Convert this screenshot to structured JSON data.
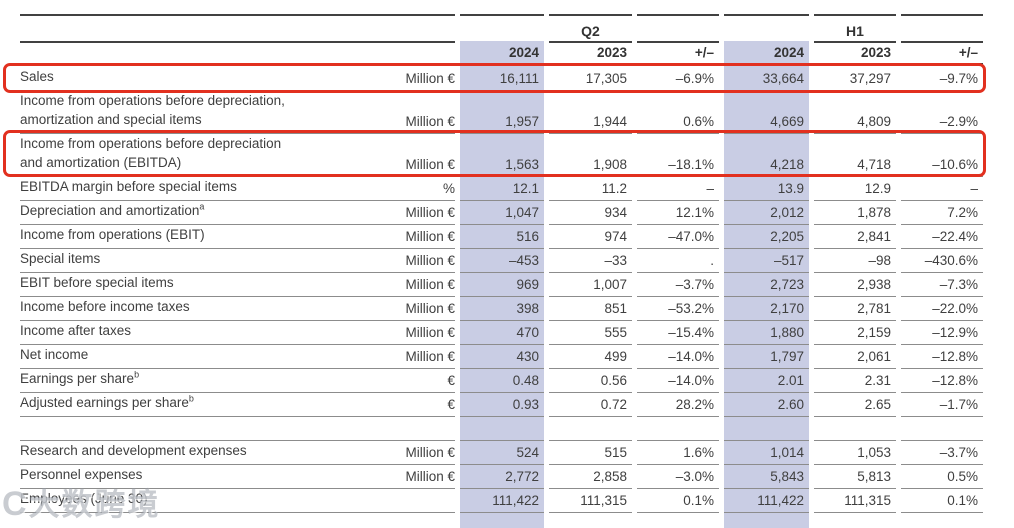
{
  "colors": {
    "column_shade": "#c9cde4",
    "highlight_box": "#e2301f",
    "rule_dark": "#414141",
    "rule_light": "#8c8c8c",
    "text": "#3f3f3f"
  },
  "watermark": {
    "mark": "C",
    "text": "大数跨境"
  },
  "table": {
    "col_groups": [
      {
        "label": "Q2",
        "years": [
          "2024",
          "2023",
          "+/–"
        ]
      },
      {
        "label": "H1",
        "years": [
          "2024",
          "2023",
          "+/–"
        ]
      }
    ],
    "rows": [
      {
        "label": "Sales",
        "unit": "Million €",
        "values": [
          "16,111",
          "17,305",
          "–6.9%",
          "33,664",
          "37,297",
          "–9.7%"
        ],
        "highlight": true
      },
      {
        "label": "Income from operations before depreciation,",
        "label2": "amortization and special items",
        "unit": "Million €",
        "values": [
          "1,957",
          "1,944",
          "0.6%",
          "4,669",
          "4,809",
          "–2.9%"
        ]
      },
      {
        "label": "Income from operations before depreciation",
        "label2": "and amortization (EBITDA)",
        "unit": "Million €",
        "values": [
          "1,563",
          "1,908",
          "–18.1%",
          "4,218",
          "4,718",
          "–10.6%"
        ],
        "highlight": true
      },
      {
        "label": "EBITDA margin before special items",
        "unit": "%",
        "values": [
          "12.1",
          "11.2",
          "–",
          "13.9",
          "12.9",
          "–"
        ]
      },
      {
        "label": "Depreciation and amortization",
        "sup": "a",
        "unit": "Million €",
        "values": [
          "1,047",
          "934",
          "12.1%",
          "2,012",
          "1,878",
          "7.2%"
        ]
      },
      {
        "label": "Income from operations (EBIT)",
        "unit": "Million €",
        "values": [
          "516",
          "974",
          "–47.0%",
          "2,205",
          "2,841",
          "–22.4%"
        ]
      },
      {
        "label": "Special items",
        "unit": "Million €",
        "values": [
          "–453",
          "–33",
          ".",
          "–517",
          "–98",
          "–430.6%"
        ]
      },
      {
        "label": "EBIT before special items",
        "unit": "Million €",
        "values": [
          "969",
          "1,007",
          "–3.7%",
          "2,723",
          "2,938",
          "–7.3%"
        ]
      },
      {
        "label": "Income before income taxes",
        "unit": "Million €",
        "values": [
          "398",
          "851",
          "–53.2%",
          "2,170",
          "2,781",
          "–22.0%"
        ]
      },
      {
        "label": "Income after taxes",
        "unit": "Million €",
        "values": [
          "470",
          "555",
          "–15.4%",
          "1,880",
          "2,159",
          "–12.9%"
        ]
      },
      {
        "label": "Net income",
        "unit": "Million €",
        "values": [
          "430",
          "499",
          "–14.0%",
          "1,797",
          "2,061",
          "–12.8%"
        ]
      },
      {
        "label": "Earnings per share",
        "sup": "b",
        "unit": "€",
        "values": [
          "0.48",
          "0.56",
          "–14.0%",
          "2.01",
          "2.31",
          "–12.8%"
        ]
      },
      {
        "label": "Adjusted earnings per share",
        "sup": "b",
        "unit": "€",
        "values": [
          "0.93",
          "0.72",
          "28.2%",
          "2.60",
          "2.65",
          "–1.7%"
        ]
      },
      {
        "type": "spacer",
        "label": "",
        "unit": "",
        "values": [
          "",
          "",
          "",
          "",
          "",
          ""
        ]
      },
      {
        "label": "Research and development expenses",
        "unit": "Million €",
        "values": [
          "524",
          "515",
          "1.6%",
          "1,014",
          "1,053",
          "–3.7%"
        ]
      },
      {
        "label": "Personnel expenses",
        "unit": "Million €",
        "values": [
          "2,772",
          "2,858",
          "–3.0%",
          "5,843",
          "5,813",
          "0.5%"
        ]
      },
      {
        "label": "Employees (June 30)",
        "unit": "",
        "values": [
          "111,422",
          "111,315",
          "0.1%",
          "111,422",
          "111,315",
          "0.1%"
        ]
      }
    ]
  }
}
